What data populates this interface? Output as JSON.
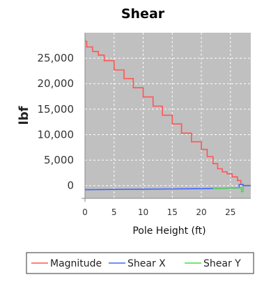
{
  "chart_data": {
    "type": "line",
    "title": "Shear",
    "xlabel": "Pole Height (ft)",
    "ylabel": "lbf",
    "xlim": [
      0,
      28.5
    ],
    "ylim": [
      -2500,
      30000
    ],
    "x_ticks": [
      0,
      5,
      10,
      15,
      20,
      25
    ],
    "y_ticks": [
      0,
      5000,
      10000,
      15000,
      20000,
      25000
    ],
    "y_tick_labels": [
      "0",
      "5,000",
      "10,000",
      "15,000",
      "20,000",
      "25,000"
    ],
    "x_tick_labels": [
      "0",
      "5",
      "10",
      "15",
      "20",
      "25"
    ],
    "grid": true,
    "legend_position": "bottom",
    "series": [
      {
        "name": "Magnitude",
        "color": "#ff5555",
        "x": [
          0,
          0.3,
          0.3,
          1.3,
          1.3,
          2.3,
          2.3,
          3.3,
          3.3,
          5.0,
          5.0,
          6.7,
          6.7,
          8.3,
          8.3,
          10.0,
          10.0,
          11.7,
          11.7,
          13.3,
          13.3,
          15.0,
          15.0,
          16.6,
          16.6,
          18.3,
          18.3,
          20.0,
          20.0,
          21.0,
          21.0,
          22.0,
          22.0,
          22.8,
          22.8,
          23.6,
          23.6,
          24.4,
          24.4,
          25.3,
          25.3,
          26.2,
          26.2,
          26.8,
          26.8,
          27.2,
          27.2,
          28.5
        ],
        "values": [
          28300,
          28300,
          27200,
          27200,
          26300,
          26300,
          25600,
          25600,
          24500,
          24500,
          22700,
          22700,
          21000,
          21000,
          19200,
          19200,
          17400,
          17400,
          15600,
          15600,
          13800,
          13800,
          12100,
          12100,
          10300,
          10300,
          8600,
          8600,
          7100,
          7100,
          5700,
          5700,
          4300,
          4300,
          3300,
          3300,
          2700,
          2700,
          2300,
          2300,
          1700,
          1700,
          1000,
          1000,
          200,
          200,
          0,
          0
        ]
      },
      {
        "name": "Shear X",
        "color": "#4466ff",
        "x": [
          0,
          5,
          10,
          15,
          20,
          22,
          24,
          26.5,
          26.5,
          27.2,
          27.2,
          28.5
        ],
        "values": [
          -800,
          -750,
          -700,
          -650,
          -600,
          -550,
          -500,
          -450,
          200,
          200,
          0,
          0
        ]
      },
      {
        "name": "Shear Y",
        "color": "#44dd44",
        "x": [
          22,
          24,
          26.5,
          26.9,
          26.9,
          27.2,
          27.2
        ],
        "values": [
          -520,
          -480,
          -420,
          -420,
          -1200,
          -1200,
          0
        ]
      }
    ]
  }
}
